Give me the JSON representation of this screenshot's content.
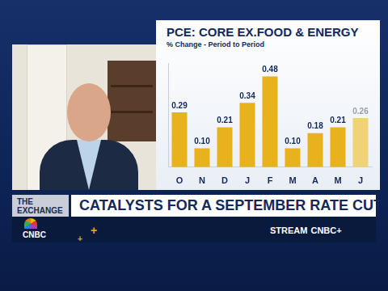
{
  "chart_data": {
    "type": "bar",
    "title": "PCE: CORE EX.FOOD & ENERGY",
    "subtitle": "% Change - Period to Period",
    "categories": [
      "O",
      "N",
      "D",
      "J",
      "F",
      "M",
      "A",
      "M",
      "J"
    ],
    "values": [
      0.29,
      0.1,
      0.21,
      0.34,
      0.48,
      0.1,
      0.18,
      0.21,
      0.26
    ],
    "value_labels": [
      "0.29",
      "0.10",
      "0.21",
      "0.34",
      "0.48",
      "0.10",
      "0.18",
      "0.21",
      "0.26"
    ],
    "colors": [
      "#e7b21b",
      "#e7b21b",
      "#e7b21b",
      "#e7b21b",
      "#e7b21b",
      "#e7b21b",
      "#e7b21b",
      "#e7b21b",
      "#f0d277"
    ],
    "ylim": [
      0,
      0.55
    ],
    "yticks": [],
    "grid": false,
    "data_labels": true,
    "tick_labels": "x"
  },
  "banner": {
    "show": "THE EXCHANGE",
    "headline": "CATALYSTS FOR A SEPTEMBER RATE CUT",
    "network": "CNBC",
    "stream": "STREAM",
    "stream_brand": "CNBC+"
  }
}
